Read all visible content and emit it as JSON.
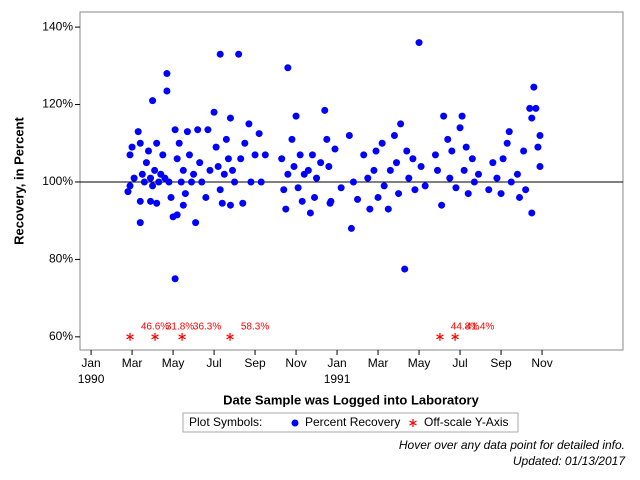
{
  "chart_data": {
    "type": "scatter",
    "y_label": "Recovery, in Percent",
    "x_label": "Date Sample was Logged into Laboratory",
    "xlim": [
      -0.54,
      25.95
    ],
    "ylim": [
      56.6,
      143.9
    ],
    "xticks": [
      {
        "value": 0,
        "label": "Jan"
      },
      {
        "value": 2,
        "label": "Mar"
      },
      {
        "value": 4,
        "label": "May"
      },
      {
        "value": 6,
        "label": "Jul"
      },
      {
        "value": 8,
        "label": "Sep"
      },
      {
        "value": 10,
        "label": "Nov"
      },
      {
        "value": 12,
        "label": "Jan"
      },
      {
        "value": 14,
        "label": "Mar"
      },
      {
        "value": 16,
        "label": "May"
      },
      {
        "value": 18,
        "label": "Jul"
      },
      {
        "value": 20,
        "label": "Sep"
      },
      {
        "value": 22,
        "label": "Nov"
      }
    ],
    "xtick_years": [
      {
        "value": 0,
        "label": "1990"
      },
      {
        "value": 12,
        "label": "1991"
      }
    ],
    "yticks": [
      {
        "value": 60,
        "label": "60%"
      },
      {
        "value": 80,
        "label": "80%"
      },
      {
        "value": 100,
        "label": "100%"
      },
      {
        "value": 120,
        "label": "120%"
      },
      {
        "value": 140,
        "label": "140%"
      }
    ],
    "reference_line": 100,
    "legend_title": "Plot Symbols:",
    "series": [
      {
        "name": "Percent Recovery",
        "color": "#0000ff",
        "x": [
          1.8,
          1.9,
          1.9,
          2.0,
          2.1,
          2.3,
          2.4,
          2.4,
          2.4,
          2.5,
          2.6,
          2.7,
          2.8,
          2.9,
          2.9,
          3.0,
          3.0,
          3.1,
          3.2,
          3.2,
          3.3,
          3.4,
          3.5,
          3.6,
          3.7,
          3.7,
          3.8,
          3.9,
          4.0,
          4.1,
          4.1,
          4.2,
          4.2,
          4.3,
          4.4,
          4.5,
          4.5,
          4.6,
          4.7,
          4.8,
          4.9,
          5.0,
          5.1,
          5.2,
          5.3,
          5.4,
          5.6,
          5.7,
          5.8,
          6.0,
          6.1,
          6.2,
          6.3,
          6.3,
          6.4,
          6.5,
          6.6,
          6.7,
          6.8,
          6.8,
          6.9,
          7.0,
          7.2,
          7.3,
          7.4,
          7.5,
          7.7,
          7.8,
          8.0,
          8.2,
          8.3,
          8.5,
          9.3,
          9.4,
          9.5,
          9.6,
          9.6,
          9.8,
          9.9,
          10.0,
          10.1,
          10.2,
          10.3,
          10.4,
          10.6,
          10.7,
          10.8,
          10.9,
          11.0,
          11.2,
          11.4,
          11.5,
          11.6,
          11.66,
          11.7,
          11.9,
          12.2,
          12.6,
          12.7,
          12.8,
          13.0,
          13.3,
          13.5,
          13.6,
          13.8,
          13.9,
          14.0,
          14.2,
          14.3,
          14.5,
          14.6,
          14.8,
          14.9,
          15.0,
          15.1,
          15.3,
          15.4,
          15.5,
          15.7,
          15.8,
          16.0,
          16.1,
          16.3,
          16.8,
          16.9,
          17.1,
          17.2,
          17.4,
          17.5,
          17.6,
          17.8,
          18.0,
          18.1,
          18.2,
          18.3,
          18.4,
          18.6,
          18.7,
          18.9,
          19.4,
          19.6,
          19.8,
          20.0,
          20.1,
          20.3,
          20.4,
          20.5,
          20.8,
          20.9,
          21.1,
          21.2,
          21.4,
          21.5,
          21.5,
          21.6,
          21.7,
          21.8,
          21.9,
          21.9
        ],
        "values": [
          97.5,
          99,
          107,
          109,
          101,
          113,
          110,
          89.5,
          95,
          102,
          100,
          105,
          108,
          101,
          95,
          121,
          99,
          103,
          110,
          94.5,
          100,
          102,
          107,
          101,
          123.5,
          128,
          100,
          96,
          91,
          113.5,
          75,
          106,
          91.5,
          110,
          100,
          94,
          103,
          97,
          113,
          107,
          100,
          102,
          89.5,
          113.5,
          105,
          100,
          96,
          113.5,
          103,
          118,
          109,
          104,
          98,
          133,
          94.5,
          102,
          111,
          106,
          116.5,
          94,
          103,
          100,
          133,
          106,
          94.5,
          110,
          115,
          100,
          107,
          112.5,
          100,
          107,
          106,
          98,
          93,
          129.5,
          102,
          111,
          104,
          117,
          98.5,
          107,
          95,
          102,
          103,
          92,
          107,
          96,
          101,
          105,
          118.5,
          111,
          104,
          94.5,
          95,
          108.5,
          98.5,
          112,
          88,
          100,
          95.5,
          107,
          101,
          93,
          103,
          108,
          96,
          110,
          99,
          93,
          103,
          112,
          105,
          97,
          115,
          77.5,
          108,
          101,
          106,
          98,
          136,
          104,
          99,
          107,
          103,
          94,
          117,
          111,
          101,
          108,
          98.5,
          114,
          117,
          103,
          109,
          97,
          106,
          100,
          102,
          98,
          105,
          101,
          97,
          106,
          110,
          113,
          100,
          102,
          96,
          108,
          98,
          119,
          116.5,
          92,
          124.5,
          119,
          109,
          112,
          104
        ]
      },
      {
        "name": "Off-scale Y-Axis",
        "color": "#ff0000",
        "x": [
          1.9,
          3.12,
          4.44,
          6.78,
          17.02,
          17.76
        ],
        "values": [
          46.6,
          31.8,
          36.3,
          58.3,
          44.8,
          41.4
        ],
        "value_labels": [
          "46.6%",
          "31.8%",
          "36.3%",
          "58.3%",
          "44.8%",
          "41.4%"
        ]
      }
    ],
    "footnotes": [
      "Hover over any data point for detailed info.",
      "Updated: 01/13/2017"
    ]
  }
}
